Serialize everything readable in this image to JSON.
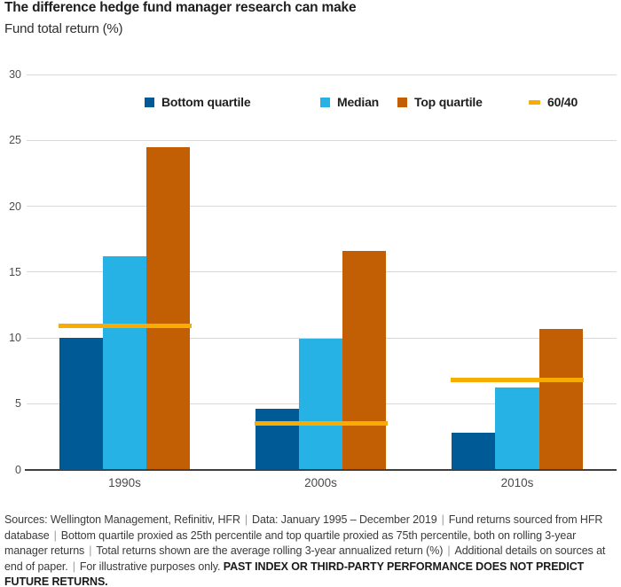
{
  "header": {
    "title": "The difference hedge fund manager research can make",
    "subtitle": "Fund total return (%)"
  },
  "legend": [
    {
      "label": "Bottom quartile",
      "color": "#005A96",
      "shape": "square"
    },
    {
      "label": "Median",
      "color": "#26B2E4",
      "shape": "square"
    },
    {
      "label": "Top quartile",
      "color": "#C25F04",
      "shape": "square"
    },
    {
      "label": "60/40",
      "color": "#F8AB00",
      "shape": "dash"
    }
  ],
  "chart_data": {
    "type": "bar",
    "title": "The difference hedge fund manager research can make",
    "ylabel": "Fund total return (%)",
    "categories": [
      "1990s",
      "2000s",
      "2010s"
    ],
    "series": [
      {
        "name": "Bottom quartile",
        "color": "#005A96",
        "values": [
          10.0,
          4.6,
          2.8
        ]
      },
      {
        "name": "Median",
        "color": "#26B2E4",
        "values": [
          16.2,
          9.9,
          6.2
        ]
      },
      {
        "name": "Top quartile",
        "color": "#C25F04",
        "values": [
          24.5,
          16.6,
          10.7
        ]
      }
    ],
    "overlay_line": {
      "name": "60/40",
      "color": "#F8AB00",
      "values": [
        10.9,
        3.5,
        6.8
      ]
    },
    "ylim": [
      0,
      30
    ],
    "yticks": [
      0,
      5,
      10,
      15,
      20,
      25,
      30
    ],
    "grid": true,
    "legend_position": "top"
  },
  "footnote": {
    "segments": [
      "Sources: Wellington Management, Refinitiv, HFR",
      "Data: January 1995 – December 2019",
      "Fund returns sourced from HFR database",
      "Bottom quartile proxied as 25th percentile and top quartile proxied as 75th percentile, both on rolling 3-year manager returns",
      "Total returns shown are the average rolling 3-year annualized return (%)",
      "Additional details on sources at end of paper.",
      "For illustrative purposes only."
    ],
    "separator": "|",
    "bold_note": "PAST INDEX OR THIRD-PARTY PERFORMANCE DOES NOT PREDICT FUTURE RETURNS."
  }
}
